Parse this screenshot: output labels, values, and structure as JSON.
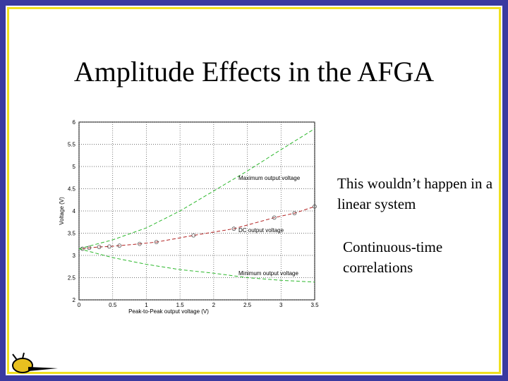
{
  "title": "Amplitude Effects in the AFGA",
  "bullets": [
    "This wouldn’t happen in a linear system",
    "Continuous-time correlations"
  ],
  "chart_data": {
    "type": "line",
    "xlabel": "Peak-to-Peak output voltage (V)",
    "ylabel": "Voltage (V)",
    "xlim": [
      0,
      3.5
    ],
    "xticks": [
      0,
      0.5,
      1,
      1.5,
      2,
      2.5,
      3,
      3.5
    ],
    "ylim": [
      2,
      6
    ],
    "yticks": [
      2,
      2.5,
      3,
      3.5,
      4,
      4.5,
      5,
      5.5,
      6
    ],
    "grid": true,
    "annotations": [
      "Maximum output voltage",
      "DC output voltage",
      "Minimum output voltage"
    ],
    "series": [
      {
        "color": "#2db82d",
        "linestyle": "--",
        "x": [
          0,
          0.5,
          1,
          1.5,
          2,
          2.5,
          3,
          3.5
        ],
        "values": [
          3.15,
          3.35,
          3.62,
          4.0,
          4.45,
          4.9,
          5.38,
          5.85
        ]
      },
      {
        "color": "#b22222",
        "linestyle": "--",
        "marker": "o",
        "x": [
          0.05,
          0.15,
          0.3,
          0.45,
          0.6,
          0.9,
          1.15,
          1.7,
          2.3,
          2.9,
          3.2,
          3.5
        ],
        "values": [
          3.15,
          3.17,
          3.19,
          3.2,
          3.22,
          3.26,
          3.3,
          3.45,
          3.6,
          3.85,
          3.95,
          4.1
        ]
      },
      {
        "color": "#2db82d",
        "linestyle": "--",
        "x": [
          0,
          0.5,
          1,
          1.5,
          2,
          2.5,
          3,
          3.5
        ],
        "values": [
          3.15,
          2.95,
          2.8,
          2.68,
          2.6,
          2.5,
          2.44,
          2.4
        ]
      }
    ]
  }
}
